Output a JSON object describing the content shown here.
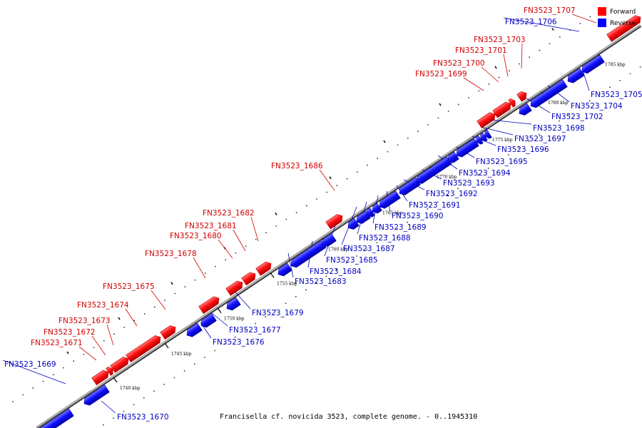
{
  "caption": "Francisella cf. novicida 3523, complete genome. - 0..1945310",
  "legend": [
    {
      "key": "forward",
      "label": "Forward",
      "color": "#ff0000"
    },
    {
      "key": "reverse",
      "label": "Reverse",
      "color": "#0000ff"
    }
  ],
  "scale_labels": [
    "1740 kbp",
    "1745 kbp",
    "1750 kbp",
    "1755 kbp",
    "1760 kbp",
    "1765 kbp",
    "1770 kbp",
    "1775 kbp",
    "1780 kbp",
    "1785 kbp"
  ],
  "genes": [
    {
      "id": "FN3523_1669",
      "strand": "reverse"
    },
    {
      "id": "FN3523_1670",
      "strand": "reverse"
    },
    {
      "id": "FN3523_1671",
      "strand": "forward"
    },
    {
      "id": "FN3523_1672",
      "strand": "forward"
    },
    {
      "id": "FN3523_1673",
      "strand": "forward"
    },
    {
      "id": "FN3523_1674",
      "strand": "forward"
    },
    {
      "id": "FN3523_1675",
      "strand": "forward"
    },
    {
      "id": "FN3523_1676",
      "strand": "reverse"
    },
    {
      "id": "FN3523_1677",
      "strand": "reverse"
    },
    {
      "id": "FN3523_1678",
      "strand": "forward"
    },
    {
      "id": "FN3523_1679",
      "strand": "reverse"
    },
    {
      "id": "FN3523_1680",
      "strand": "forward"
    },
    {
      "id": "FN3523_1681",
      "strand": "forward"
    },
    {
      "id": "FN3523_1682",
      "strand": "forward"
    },
    {
      "id": "FN3523_1683",
      "strand": "reverse"
    },
    {
      "id": "FN3523_1684",
      "strand": "reverse"
    },
    {
      "id": "FN3523_1685",
      "strand": "reverse"
    },
    {
      "id": "FN3523_1686",
      "strand": "forward"
    },
    {
      "id": "FN3523_1687",
      "strand": "reverse"
    },
    {
      "id": "FN3523_1688",
      "strand": "reverse"
    },
    {
      "id": "FN3523_1689",
      "strand": "reverse"
    },
    {
      "id": "FN3523_1690",
      "strand": "reverse"
    },
    {
      "id": "FN3523_1691",
      "strand": "reverse"
    },
    {
      "id": "FN3523_1692",
      "strand": "reverse"
    },
    {
      "id": "FN3523_1693",
      "strand": "reverse"
    },
    {
      "id": "FN3523_1694",
      "strand": "reverse"
    },
    {
      "id": "FN3523_1695",
      "strand": "reverse"
    },
    {
      "id": "FN3523_1696",
      "strand": "reverse"
    },
    {
      "id": "FN3523_1697",
      "strand": "reverse"
    },
    {
      "id": "FN3523_1698",
      "strand": "reverse"
    },
    {
      "id": "FN3523_1699",
      "strand": "forward"
    },
    {
      "id": "FN3523_1700",
      "strand": "forward"
    },
    {
      "id": "FN3523_1701",
      "strand": "forward"
    },
    {
      "id": "FN3523_1702",
      "strand": "reverse"
    },
    {
      "id": "FN3523_1703",
      "strand": "forward"
    },
    {
      "id": "FN3523_1704",
      "strand": "reverse"
    },
    {
      "id": "FN3523_1705",
      "strand": "reverse"
    },
    {
      "id": "FN3523_1706",
      "strand": "reverse"
    },
    {
      "id": "FN3523_1707",
      "strand": "forward"
    }
  ]
}
